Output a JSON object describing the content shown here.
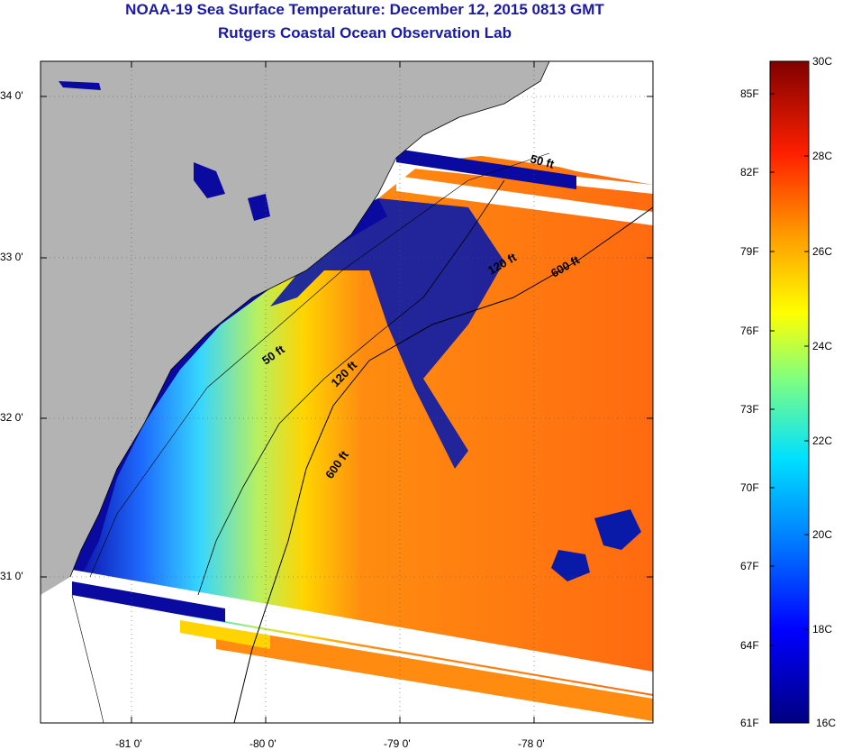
{
  "title": "NOAA-19 Sea Surface Temperature:  December 12, 2015 0813 GMT",
  "subtitle": "Rutgers Coastal Ocean Observation Lab",
  "map": {
    "lat_labels": [
      "34 0'",
      "33 0'",
      "32 0'",
      "31 0'"
    ],
    "lon_labels": [
      "-81 0'",
      "-80 0'",
      "-79 0'",
      "-78 0'"
    ],
    "contours": [
      {
        "label": "50 ft",
        "id": "contour-50ft-north"
      },
      {
        "label": "120 ft",
        "id": "contour-120ft-north"
      },
      {
        "label": "600 ft",
        "id": "contour-600ft-north"
      },
      {
        "label": "50 ft",
        "id": "contour-50ft-mid"
      },
      {
        "label": "120 ft",
        "id": "contour-120ft-mid"
      },
      {
        "label": "600 ft",
        "id": "contour-600ft-south"
      }
    ],
    "colors": {
      "land": "#b3b3b3",
      "cold": "#0a0aa0",
      "warm": "#ff7a10"
    }
  },
  "colorbar": {
    "fahrenheit": [
      "85F",
      "82F",
      "79F",
      "76F",
      "73F",
      "70F",
      "67F",
      "64F",
      "61F"
    ],
    "celsius": [
      "30C",
      "28C",
      "26C",
      "24C",
      "22C",
      "20C",
      "18C",
      "16C"
    ]
  }
}
